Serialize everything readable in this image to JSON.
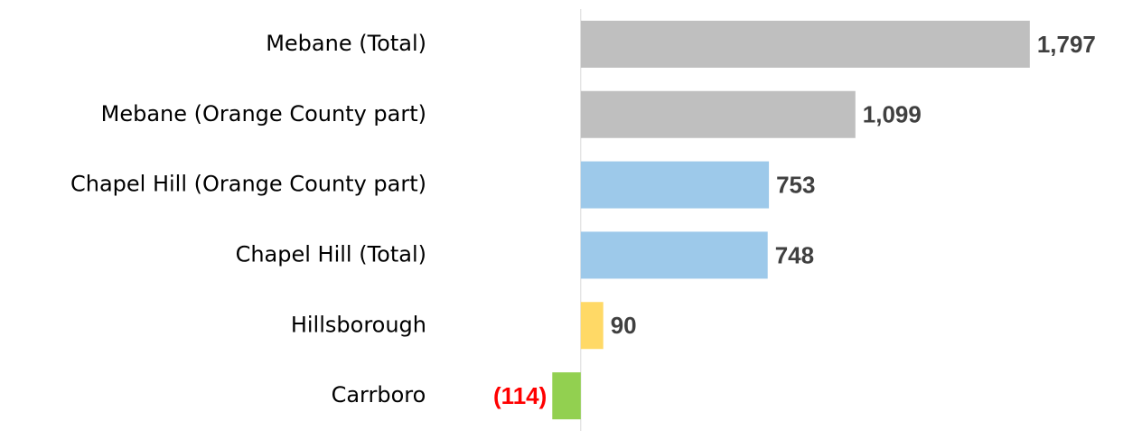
{
  "chart_data": {
    "type": "bar",
    "orientation": "horizontal",
    "categories": [
      "Mebane (Total)",
      "Mebane (Orange County part)",
      "Chapel Hill (Orange County part)",
      "Chapel Hill (Total)",
      "Hillsborough",
      "Carrboro"
    ],
    "values": [
      1797,
      1099,
      753,
      748,
      90,
      -114
    ],
    "value_labels": [
      "1,797",
      "1,099",
      "753",
      "748",
      "90",
      "(114)"
    ],
    "colors": [
      "#bfbfbf",
      "#bfbfbf",
      "#9dc9ea",
      "#9dc9ea",
      "#ffd966",
      "#92d050"
    ],
    "label_color": "#404040",
    "negative_label_color": "#ff0000",
    "xlim": [
      -520,
      2170
    ]
  }
}
